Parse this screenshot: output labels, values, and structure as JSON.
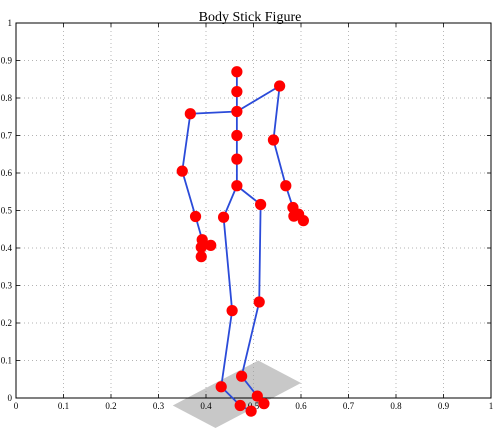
{
  "chart_data": {
    "type": "scatter",
    "title": "Body Stick Figure",
    "xlabel": "",
    "ylabel": "",
    "xlim": [
      0,
      1
    ],
    "ylim": [
      0,
      1
    ],
    "grid": true,
    "colors": {
      "line": "#2b4bd9",
      "marker": "#ff0000",
      "floor": "#c8c8c8"
    },
    "x_ticks": [
      "0",
      "0.1",
      "0.2",
      "0.3",
      "0.4",
      "0.5",
      "0.6",
      "0.7",
      "0.8",
      "0.9",
      "1"
    ],
    "y_ticks": [
      "0",
      "0.1",
      "0.2",
      "0.3",
      "0.4",
      "0.5",
      "0.6",
      "0.7",
      "0.8",
      "0.9",
      "1"
    ],
    "floor_polygon": [
      [
        0.33,
        -0.02
      ],
      [
        0.42,
        -0.08
      ],
      [
        0.6,
        0.04
      ],
      [
        0.51,
        0.1
      ]
    ],
    "joints": [
      {
        "name": "head",
        "x": 0.465,
        "y": 0.87
      },
      {
        "name": "neck",
        "x": 0.465,
        "y": 0.817
      },
      {
        "name": "shoulder-center",
        "x": 0.465,
        "y": 0.764
      },
      {
        "name": "spine-upper",
        "x": 0.465,
        "y": 0.7
      },
      {
        "name": "spine-mid",
        "x": 0.465,
        "y": 0.637
      },
      {
        "name": "pelvis",
        "x": 0.465,
        "y": 0.566
      },
      {
        "name": "shoulder-left",
        "x": 0.367,
        "y": 0.758
      },
      {
        "name": "elbow-left",
        "x": 0.35,
        "y": 0.605
      },
      {
        "name": "wrist-left",
        "x": 0.378,
        "y": 0.484
      },
      {
        "name": "hand-left-1",
        "x": 0.392,
        "y": 0.422
      },
      {
        "name": "hand-left-2",
        "x": 0.41,
        "y": 0.407
      },
      {
        "name": "hand-left-3",
        "x": 0.39,
        "y": 0.402
      },
      {
        "name": "hand-left-4",
        "x": 0.39,
        "y": 0.377
      },
      {
        "name": "shoulder-right",
        "x": 0.555,
        "y": 0.832
      },
      {
        "name": "elbow-right",
        "x": 0.542,
        "y": 0.688
      },
      {
        "name": "wrist-right",
        "x": 0.568,
        "y": 0.566
      },
      {
        "name": "hand-right-1",
        "x": 0.583,
        "y": 0.508
      },
      {
        "name": "hand-right-2",
        "x": 0.595,
        "y": 0.49
      },
      {
        "name": "hand-right-3",
        "x": 0.585,
        "y": 0.485
      },
      {
        "name": "hand-right-4",
        "x": 0.605,
        "y": 0.473
      },
      {
        "name": "hip-left",
        "x": 0.437,
        "y": 0.482
      },
      {
        "name": "knee-left",
        "x": 0.455,
        "y": 0.233
      },
      {
        "name": "ankle-left",
        "x": 0.432,
        "y": 0.03
      },
      {
        "name": "hip-right",
        "x": 0.515,
        "y": 0.516
      },
      {
        "name": "knee-right",
        "x": 0.512,
        "y": 0.256
      },
      {
        "name": "ankle-right",
        "x": 0.475,
        "y": 0.058
      },
      {
        "name": "foot-left-1",
        "x": 0.472,
        "y": -0.02
      },
      {
        "name": "foot-left-2",
        "x": 0.495,
        "y": -0.035
      },
      {
        "name": "foot-right-1",
        "x": 0.508,
        "y": 0.005
      },
      {
        "name": "foot-right-2",
        "x": 0.522,
        "y": -0.015
      }
    ],
    "bones": [
      [
        "head",
        "neck"
      ],
      [
        "neck",
        "shoulder-center"
      ],
      [
        "shoulder-center",
        "spine-upper"
      ],
      [
        "spine-upper",
        "spine-mid"
      ],
      [
        "spine-mid",
        "pelvis"
      ],
      [
        "shoulder-center",
        "shoulder-left"
      ],
      [
        "shoulder-left",
        "elbow-left"
      ],
      [
        "elbow-left",
        "wrist-left"
      ],
      [
        "wrist-left",
        "hand-left-1"
      ],
      [
        "hand-left-1",
        "hand-left-2"
      ],
      [
        "hand-left-1",
        "hand-left-3"
      ],
      [
        "hand-left-3",
        "hand-left-4"
      ],
      [
        "shoulder-center",
        "shoulder-right"
      ],
      [
        "shoulder-right",
        "elbow-right"
      ],
      [
        "elbow-right",
        "wrist-right"
      ],
      [
        "wrist-right",
        "hand-right-1"
      ],
      [
        "hand-right-1",
        "hand-right-2"
      ],
      [
        "hand-right-1",
        "hand-right-3"
      ],
      [
        "hand-right-2",
        "hand-right-4"
      ],
      [
        "pelvis",
        "hip-left"
      ],
      [
        "hip-left",
        "knee-left"
      ],
      [
        "knee-left",
        "ankle-left"
      ],
      [
        "pelvis",
        "hip-right"
      ],
      [
        "hip-right",
        "knee-right"
      ],
      [
        "knee-right",
        "ankle-right"
      ],
      [
        "ankle-left",
        "foot-left-1"
      ],
      [
        "foot-left-1",
        "foot-left-2"
      ],
      [
        "ankle-right",
        "foot-right-1"
      ],
      [
        "foot-right-1",
        "foot-right-2"
      ]
    ]
  }
}
